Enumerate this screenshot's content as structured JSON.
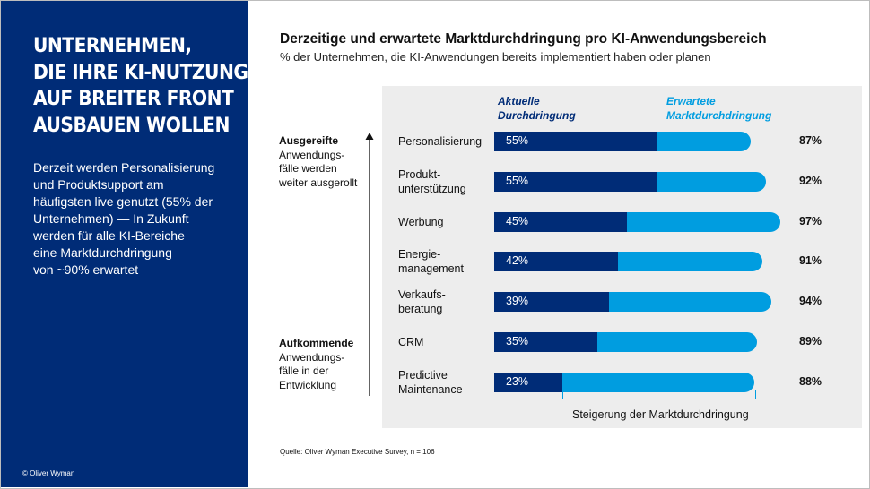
{
  "left_panel": {
    "headline": [
      "UNTERNEHMEN,",
      "DIE IHRE KI-NUTZUNG",
      "AUF BREITER FRONT",
      "AUSBAUEN WOLLEN"
    ],
    "summary": [
      "Derzeit werden Personalisierung",
      "und Produktsupport am",
      "häufigsten live genutzt (55% der",
      "Unternehmen) — In Zukunft",
      "werden für alle KI-Bereiche",
      "eine Marktdurchdringung",
      "von ~90% erwartet"
    ],
    "copyright": "© Oliver Wyman",
    "background_color": "#002c77"
  },
  "chart_data": {
    "type": "bar",
    "orientation": "horizontal",
    "stacked_overlay": true,
    "title": "Derzeitige und erwartete Marktdurchdringung pro KI-Anwendungsbereich",
    "subtitle": "% der Unternehmen, die KI-Anwendungen bereits implementiert haben oder planen",
    "legend": {
      "current": [
        "Aktuelle",
        "Durchdringung"
      ],
      "expected": [
        "Erwartete",
        "Marktdurchdringung"
      ],
      "placement": "top"
    },
    "categories": [
      {
        "lines": [
          "Personalisierung"
        ]
      },
      {
        "lines": [
          "Produkt-",
          "unterstützung"
        ]
      },
      {
        "lines": [
          "Werbung"
        ]
      },
      {
        "lines": [
          "Energie-",
          "management"
        ]
      },
      {
        "lines": [
          "Verkaufs-",
          "beratung"
        ]
      },
      {
        "lines": [
          "CRM"
        ]
      },
      {
        "lines": [
          "Predictive",
          "Maintenance"
        ]
      }
    ],
    "series": [
      {
        "name": "Aktuelle Durchdringung",
        "color": "#002c77",
        "values": [
          55,
          55,
          45,
          42,
          39,
          35,
          23
        ],
        "labels": [
          "55%",
          "55%",
          "45%",
          "42%",
          "39%",
          "35%",
          "23%"
        ]
      },
      {
        "name": "Erwartete Marktdurchdringung",
        "color": "#009de0",
        "values": [
          87,
          92,
          97,
          91,
          94,
          89,
          88
        ],
        "labels": [
          "87%",
          "92%",
          "97%",
          "91%",
          "94%",
          "89%",
          "88%"
        ]
      }
    ],
    "xlim": [
      0,
      100
    ],
    "side_annotations": {
      "top": [
        "Ausgereifte",
        "Anwendungs-",
        "fälle werden",
        "weiter ausgerollt"
      ],
      "bottom": [
        "Aufkommende",
        "Anwendungs-",
        "fälle in der",
        "Entwicklung"
      ]
    },
    "bracket_label": "Steigerung der Marktdurchdringung",
    "source": "Quelle: Oliver Wyman Executive Survey, n = 106",
    "panel_color": "#ededed"
  }
}
